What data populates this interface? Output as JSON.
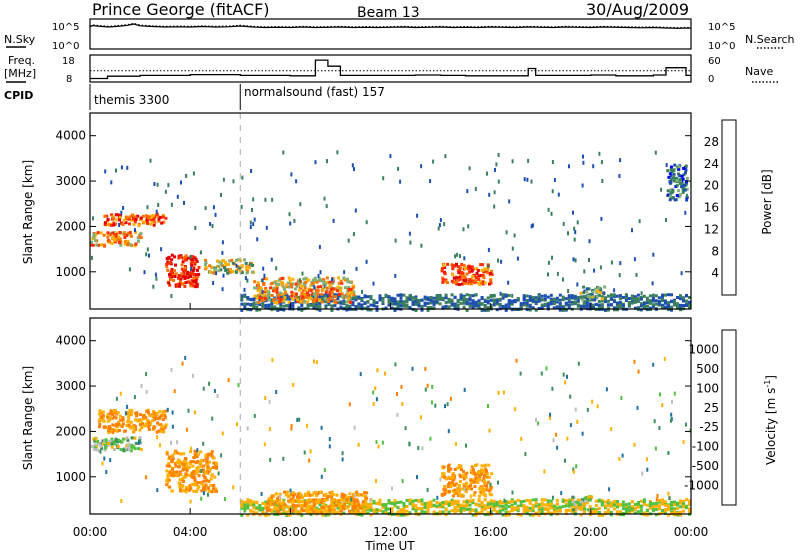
{
  "header": {
    "station": "Prince George (fitACF)",
    "beam": "Beam 13",
    "date": "30/Aug/2009"
  },
  "noise_panel": {
    "left_label": "N.Sky",
    "left_ticks": [
      "10^5",
      "10^0"
    ],
    "right_ticks": [
      "10^5",
      "10^0"
    ],
    "right_label": "N.Search",
    "sky_trace": [
      [
        0,
        4.0
      ],
      [
        0.1,
        4.3
      ],
      [
        0.25,
        4.2
      ],
      [
        0.5,
        4.1
      ],
      [
        0.75,
        4.0
      ],
      [
        1,
        4.1
      ],
      [
        1.25,
        4.2
      ],
      [
        1.5,
        4.35
      ],
      [
        1.75,
        4.6
      ],
      [
        2,
        4.25
      ],
      [
        2.5,
        4.1
      ],
      [
        3,
        4.0
      ],
      [
        3.5,
        4.05
      ],
      [
        4,
        4.0
      ],
      [
        4.5,
        4.1
      ],
      [
        5,
        4.0
      ],
      [
        5.5,
        4.05
      ],
      [
        6,
        4.2
      ],
      [
        6.5,
        4.0
      ],
      [
        7,
        3.9
      ],
      [
        7.5,
        3.95
      ],
      [
        8,
        3.9
      ],
      [
        8.5,
        4.0
      ],
      [
        9,
        3.9
      ],
      [
        9.5,
        3.95
      ],
      [
        10,
        4.0
      ],
      [
        10.5,
        3.9
      ],
      [
        11,
        3.95
      ],
      [
        11.5,
        3.9
      ],
      [
        12,
        3.95
      ],
      [
        12.5,
        4.0
      ],
      [
        13,
        3.9
      ],
      [
        13.5,
        3.95
      ],
      [
        14,
        4.0
      ],
      [
        14.5,
        3.9
      ],
      [
        15,
        3.95
      ],
      [
        15.5,
        3.9
      ],
      [
        16,
        4.0
      ],
      [
        16.5,
        3.95
      ],
      [
        17,
        3.9
      ],
      [
        17.5,
        4.0
      ],
      [
        18,
        3.95
      ],
      [
        18.5,
        3.9
      ],
      [
        19,
        4.0
      ],
      [
        19.5,
        3.95
      ],
      [
        20,
        3.9
      ],
      [
        20.5,
        4.0
      ],
      [
        21,
        3.95
      ],
      [
        21.5,
        3.9
      ],
      [
        22,
        3.85
      ],
      [
        22.5,
        3.9
      ],
      [
        23,
        3.8
      ],
      [
        23.5,
        3.75
      ],
      [
        24,
        3.8
      ]
    ]
  },
  "freq_panel": {
    "left_label_1": "Freq.",
    "left_label_2": "[MHz]",
    "left_ticks": [
      "18",
      "8"
    ],
    "right_ticks": [
      "60",
      "0"
    ],
    "right_label": "Nave",
    "cpid_label": "CPID",
    "dotted_freq_mhz": 12,
    "nave_steps": [
      [
        0,
        4
      ],
      [
        0.7,
        10
      ],
      [
        2,
        12
      ],
      [
        4,
        14
      ],
      [
        6,
        12
      ],
      [
        8,
        11
      ],
      [
        9,
        52
      ],
      [
        9.5,
        36
      ],
      [
        10,
        12
      ],
      [
        11,
        12
      ],
      [
        13,
        13
      ],
      [
        14,
        12
      ],
      [
        14.5,
        12
      ],
      [
        15,
        11
      ],
      [
        17.5,
        30
      ],
      [
        17.8,
        12
      ],
      [
        20,
        13
      ],
      [
        21,
        11
      ],
      [
        22.5,
        13
      ],
      [
        23,
        32
      ],
      [
        23.8,
        12
      ],
      [
        24,
        12
      ]
    ],
    "programs": [
      {
        "name": "themis 3300",
        "start_hour": 0
      },
      {
        "name": "normalsound (fast) 157",
        "start_hour": 6
      }
    ]
  },
  "power_panel": {
    "ylabel": "Slant Range [km]",
    "yticks": [
      "1000",
      "2000",
      "3000",
      "4000"
    ],
    "colorbar_label": "Power [dB]",
    "colorbar_ticks": [
      "4",
      "8",
      "12",
      "16",
      "20",
      "24",
      "28"
    ],
    "colorbar_colors": [
      "#0000ff",
      "#1e4fb0",
      "#3a7f5c",
      "#7fb07a",
      "#ffb000",
      "#ff7400",
      "#ff3000",
      "#e00000"
    ]
  },
  "velocity_panel": {
    "ylabel": "Slant Range [km]",
    "yticks": [
      "1000",
      "2000",
      "3000",
      "4000"
    ],
    "colorbar_label": "Velocity [m s",
    "colorbar_label_sup": "-1",
    "colorbar_label_close": "]",
    "colorbar_ticks": [
      "1000",
      "500",
      "100",
      "25",
      "-25",
      "-100",
      "-500",
      "-1000"
    ],
    "colorbar_colors": [
      "#2040c0",
      "#1e70a0",
      "#3a8f5a",
      "#50c040",
      "#bdbdbd",
      "#ffb000",
      "#ff8000",
      "#ff4000",
      "#e00000"
    ]
  },
  "x_axis": {
    "label": "Time UT",
    "ticks": [
      "00:00",
      "04:00",
      "08:00",
      "12:00",
      "16:00",
      "20:00",
      "00:00"
    ]
  },
  "chart_data": {
    "type": "heatmap",
    "x_range_hours": [
      0,
      24
    ],
    "y_range_km": [
      180,
      4500
    ],
    "program_change_hour": 6,
    "power_regions_km": [
      {
        "t0": 0.0,
        "t1": 2.0,
        "r0": 1600,
        "r1": 1900,
        "db": 20
      },
      {
        "t0": 0.5,
        "t1": 3.0,
        "r0": 2050,
        "r1": 2300,
        "db": 24
      },
      {
        "t0": 3.0,
        "t1": 4.3,
        "r0": 700,
        "r1": 1400,
        "db": 28
      },
      {
        "t0": 4.5,
        "t1": 6.5,
        "r0": 1000,
        "r1": 1300,
        "db": 16
      },
      {
        "t0": 6.5,
        "t1": 10.5,
        "r0": 350,
        "r1": 900,
        "db": 20
      },
      {
        "t0": 14.0,
        "t1": 16.0,
        "r0": 750,
        "r1": 1200,
        "db": 24
      },
      {
        "t0": 19.5,
        "t1": 20.5,
        "r0": 400,
        "r1": 700,
        "db": 12
      },
      {
        "t0": 23.0,
        "t1": 23.8,
        "r0": 2600,
        "r1": 3400,
        "db": 8
      }
    ],
    "velocity_regions_km": [
      {
        "t0": 0.0,
        "t1": 2.0,
        "r0": 1600,
        "r1": 1900,
        "v": 0
      },
      {
        "t0": 0.3,
        "t1": 3.0,
        "r0": 2000,
        "r1": 2500,
        "v": -100
      },
      {
        "t0": 3.0,
        "t1": 5.0,
        "r0": 700,
        "r1": 1600,
        "v": -100
      },
      {
        "t0": 7.0,
        "t1": 11.0,
        "r0": 250,
        "r1": 700,
        "v": -100
      },
      {
        "t0": 14.0,
        "t1": 16.0,
        "r0": 600,
        "r1": 1300,
        "v": -100
      },
      {
        "t0": 19.0,
        "t1": 20.0,
        "r0": 300,
        "r1": 600,
        "v": 0
      }
    ]
  }
}
